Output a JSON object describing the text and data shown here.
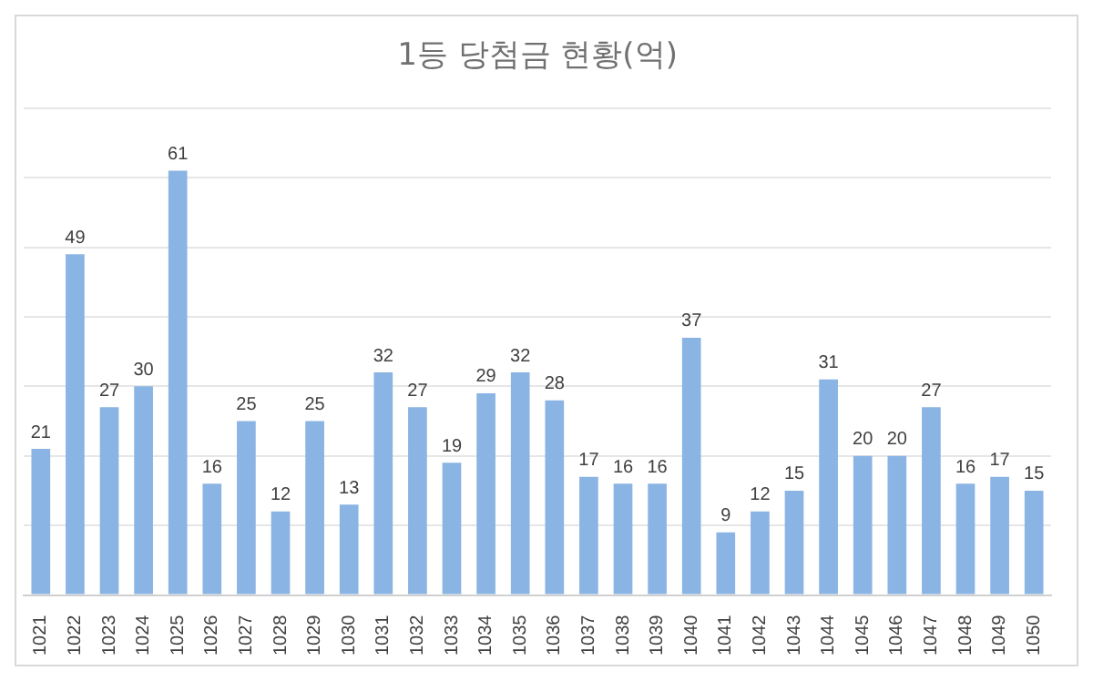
{
  "chart_data": {
    "type": "bar",
    "title": "1등 당첨금 현황(억)",
    "categories": [
      "1021",
      "1022",
      "1023",
      "1024",
      "1025",
      "1026",
      "1027",
      "1028",
      "1029",
      "1030",
      "1031",
      "1032",
      "1033",
      "1034",
      "1035",
      "1036",
      "1037",
      "1038",
      "1039",
      "1040",
      "1041",
      "1042",
      "1043",
      "1044",
      "1045",
      "1046",
      "1047",
      "1048",
      "1049",
      "1050"
    ],
    "values": [
      21,
      49,
      27,
      30,
      61,
      16,
      25,
      12,
      25,
      13,
      32,
      27,
      19,
      29,
      32,
      28,
      17,
      16,
      16,
      37,
      9,
      12,
      15,
      31,
      20,
      20,
      27,
      16,
      17,
      15
    ],
    "color": "#8ab4e3",
    "ylim": [
      0,
      70
    ],
    "yticks": [
      {
        "value": 0,
        "label": null
      },
      {
        "value": 10,
        "label": null
      },
      {
        "value": 20,
        "label": null
      },
      {
        "value": 30,
        "label": null
      },
      {
        "value": 40,
        "label": null
      },
      {
        "value": 50,
        "label": null
      },
      {
        "value": 60,
        "label": null
      },
      {
        "value": 70,
        "label": null
      }
    ],
    "grid": "y",
    "tick_labels": "x",
    "data_labels": true
  }
}
